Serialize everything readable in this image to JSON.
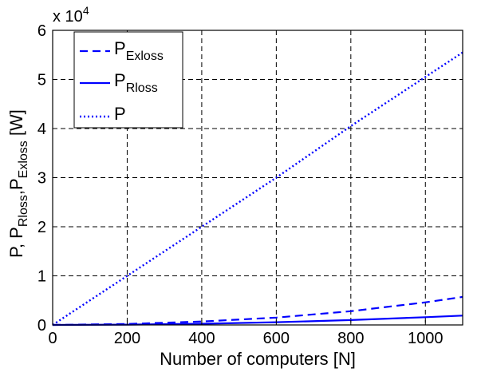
{
  "chart_data": {
    "type": "line",
    "xlabel": "Number of computers [N]",
    "ylabel_parts": {
      "base": "P, P",
      "sub1": "Rloss",
      "mid": ",P",
      "sub2": "Exloss",
      "unit": " [W]"
    },
    "y_multiplier": "x 10",
    "y_multiplier_exp": "4",
    "xlim": [
      0,
      1100
    ],
    "ylim": [
      0,
      60000
    ],
    "x_ticks": [
      "0",
      "200",
      "400",
      "600",
      "800",
      "1000"
    ],
    "y_ticks": [
      "0",
      "1",
      "2",
      "3",
      "4",
      "5",
      "6"
    ],
    "grid": true,
    "legend_placement": "top-left",
    "colors": {
      "series": "#0000ff"
    },
    "x": [
      0,
      200,
      400,
      600,
      800,
      1000,
      1100
    ],
    "series": [
      {
        "name": "P",
        "sub": "Exloss",
        "style": "dashed",
        "values": [
          0,
          200,
          700,
          1500,
          2800,
          4600,
          5700
        ]
      },
      {
        "name": "P",
        "sub": "Rloss",
        "style": "solid",
        "values": [
          0,
          60,
          250,
          560,
          1000,
          1580,
          1900
        ]
      },
      {
        "name": "P",
        "sub": "",
        "style": "dotted",
        "values": [
          0,
          10000,
          20000,
          30000,
          40500,
          50500,
          55500
        ]
      }
    ]
  }
}
